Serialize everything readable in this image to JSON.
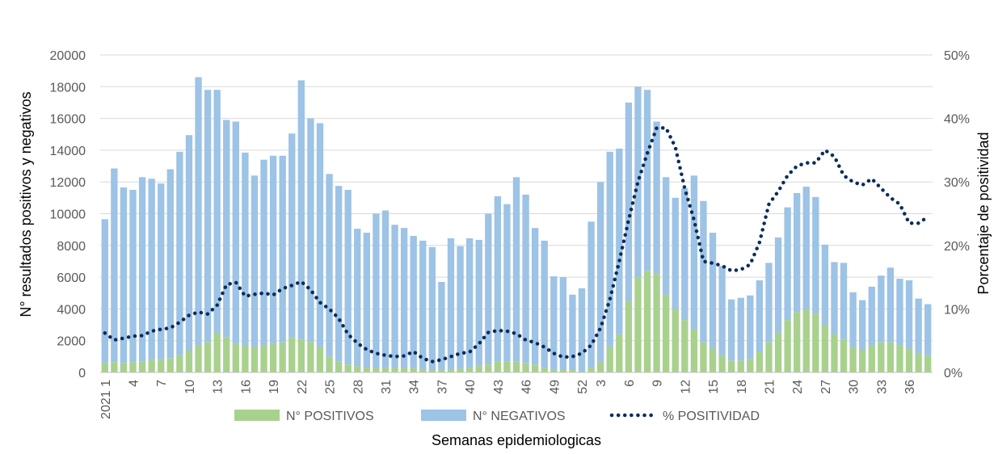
{
  "chart_data": {
    "type": "bar",
    "stacked": true,
    "xlabel": "Semanas epidemiologicas",
    "ylabel": "N° resultados positivos y negativos",
    "y2label": "Porcentaje de positividad",
    "ylim": [
      0,
      20000
    ],
    "y2lim": [
      0,
      50
    ],
    "y_ticks": [
      "0",
      "2000",
      "4000",
      "6000",
      "8000",
      "10000",
      "12000",
      "14000",
      "16000",
      "18000",
      "20000"
    ],
    "y2_ticks": [
      "0%",
      "10%",
      "20%",
      "30%",
      "40%",
      "50%"
    ],
    "x_tick_labels": [
      {
        "index": 0,
        "label": "2021 1"
      },
      {
        "index": 3,
        "label": "4"
      },
      {
        "index": 6,
        "label": "7"
      },
      {
        "index": 9,
        "label": "10"
      },
      {
        "index": 12,
        "label": "13"
      },
      {
        "index": 15,
        "label": "16"
      },
      {
        "index": 18,
        "label": "19"
      },
      {
        "index": 21,
        "label": "22"
      },
      {
        "index": 24,
        "label": "25"
      },
      {
        "index": 27,
        "label": "28"
      },
      {
        "index": 30,
        "label": "31"
      },
      {
        "index": 33,
        "label": "34"
      },
      {
        "index": 36,
        "label": "37"
      },
      {
        "index": 39,
        "label": "40"
      },
      {
        "index": 42,
        "label": "43"
      },
      {
        "index": 45,
        "label": "46"
      },
      {
        "index": 48,
        "label": "49"
      },
      {
        "index": 51,
        "label": "52"
      },
      {
        "index": 53,
        "label": "3"
      },
      {
        "index": 56,
        "label": "6"
      },
      {
        "index": 59,
        "label": "9"
      },
      {
        "index": 62,
        "label": "12"
      },
      {
        "index": 65,
        "label": "15"
      },
      {
        "index": 68,
        "label": "18"
      },
      {
        "index": 71,
        "label": "21"
      },
      {
        "index": 74,
        "label": "24"
      },
      {
        "index": 77,
        "label": "27"
      },
      {
        "index": 80,
        "label": "30"
      },
      {
        "index": 83,
        "label": "33"
      },
      {
        "index": 86,
        "label": "36"
      }
    ],
    "legend": [
      {
        "label": "N°  POSITIVOS",
        "color": "#a9d18e",
        "kind": "bar"
      },
      {
        "label": "N° NEGATIVOS",
        "color": "#9dc3e6",
        "kind": "bar"
      },
      {
        "label": "% POSITIVIDAD",
        "color": "#0d2c5a",
        "kind": "dotted-line"
      }
    ],
    "series": [
      {
        "name": "N° POSITIVOS",
        "color": "#a9d18e",
        "values": [
          600,
          650,
          600,
          650,
          700,
          800,
          800,
          900,
          1100,
          1400,
          1700,
          1900,
          2500,
          2200,
          1800,
          1700,
          1600,
          1700,
          1800,
          1900,
          2200,
          2100,
          1900,
          1600,
          1000,
          700,
          500,
          400,
          300,
          300,
          300,
          300,
          300,
          300,
          200,
          150,
          150,
          200,
          250,
          300,
          400,
          500,
          700,
          700,
          700,
          600,
          500,
          300,
          200,
          150,
          150,
          100,
          300,
          700,
          1600,
          2400,
          4500,
          6000,
          6400,
          6200,
          4900,
          4000,
          3300,
          2700,
          1900,
          1500,
          1100,
          750,
          750,
          850,
          1300,
          1900,
          2500,
          3300,
          3800,
          4000,
          3700,
          3000,
          2400,
          2100,
          1600,
          1400,
          1700,
          1900,
          1900,
          1700,
          1500,
          1200,
          1050
        ]
      },
      {
        "name": "N° NEGATIVOS",
        "color": "#9dc3e6",
        "values": [
          9050,
          12200,
          11050,
          10850,
          11600,
          11400,
          11100,
          11900,
          12800,
          13550,
          16900,
          15900,
          15300,
          13700,
          14000,
          12150,
          10800,
          11700,
          11850,
          11750,
          12850,
          16300,
          14100,
          14100,
          11500,
          11050,
          11000,
          8650,
          8500,
          9700,
          9900,
          9000,
          8800,
          8300,
          8100,
          7750,
          5550,
          8250,
          7700,
          8150,
          7950,
          9500,
          10400,
          9900,
          11600,
          10600,
          8600,
          8000,
          5850,
          5850,
          4750,
          5200,
          9200,
          11300,
          12300,
          11700,
          12500,
          12000,
          11400,
          9600,
          7400,
          7000,
          8300,
          9700,
          8900,
          7300,
          5600,
          3850,
          3950,
          4000,
          4500,
          5000,
          6000,
          7100,
          7500,
          7700,
          7350,
          5050,
          4550,
          4800,
          3450,
          3150,
          3700,
          4200,
          4700,
          4200,
          4300,
          3450,
          3250
        ]
      },
      {
        "name": "% POSITIVIDAD",
        "color": "#0d2c5a",
        "axis": "secondary",
        "values": [
          6.2,
          5.1,
          5.4,
          5.7,
          5.8,
          6.5,
          6.8,
          7.0,
          7.9,
          9.0,
          9.5,
          9.2,
          10.6,
          13.8,
          14.2,
          12.0,
          12.3,
          12.5,
          12.2,
          13.2,
          13.7,
          14.3,
          13.0,
          11.0,
          10.0,
          8.5,
          6.0,
          4.6,
          3.6,
          3.0,
          2.7,
          2.5,
          2.6,
          3.3,
          2.2,
          1.7,
          2.0,
          2.5,
          3.0,
          3.2,
          4.5,
          6.3,
          6.6,
          6.5,
          6.1,
          5.1,
          4.7,
          4.0,
          3.0,
          2.4,
          2.5,
          3.0,
          4.3,
          7.0,
          11.5,
          17.5,
          24.0,
          30.0,
          34.5,
          38.5,
          38.5,
          35.5,
          29.0,
          24.0,
          17.5,
          17.2,
          16.8,
          16.0,
          16.2,
          17.0,
          20.5,
          26.5,
          28.5,
          31.0,
          32.5,
          33.0,
          33.0,
          35.0,
          34.0,
          31.0,
          30.0,
          29.5,
          30.5,
          29.0,
          27.5,
          26.5,
          23.5,
          23.5,
          24.5
        ]
      }
    ]
  }
}
